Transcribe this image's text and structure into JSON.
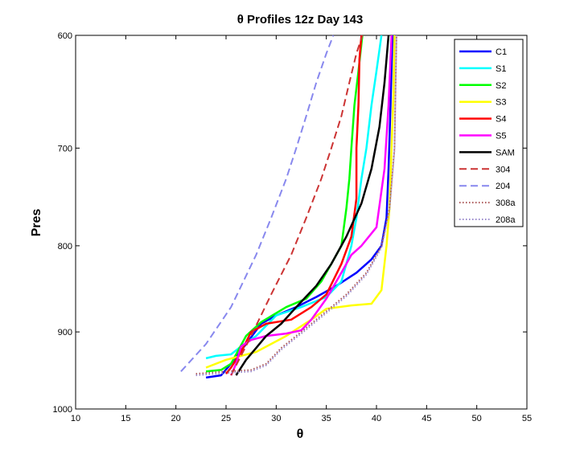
{
  "chart_data": {
    "type": "line",
    "title": "θ Profiles 12z Day 143",
    "xlabel": "θ",
    "ylabel": "Pres",
    "xlim": [
      10,
      55
    ],
    "ylim": [
      1000,
      600
    ],
    "y_scale": "log",
    "y_reversed": true,
    "grid": false,
    "legend_position": "top-right",
    "x_ticks": [
      "10",
      "15",
      "20",
      "25",
      "30",
      "35",
      "40",
      "45",
      "50",
      "55"
    ],
    "y_ticks": [
      "600",
      "700",
      "800",
      "900",
      "1000"
    ],
    "series": [
      {
        "name": "C1",
        "color": "#0000ff",
        "dash": "solid",
        "x": [
          23.0,
          24.5,
          25.5,
          27.0,
          28.5,
          30.0,
          32.0,
          34.0,
          36.0,
          38.0,
          39.5,
          40.5,
          41.0,
          41.2,
          41.4,
          41.6
        ],
        "y": [
          958,
          955,
          940,
          915,
          890,
          880,
          870,
          858,
          845,
          830,
          815,
          800,
          770,
          720,
          660,
          600
        ]
      },
      {
        "name": "S1",
        "color": "#00ffff",
        "dash": "solid",
        "x": [
          23.0,
          24.0,
          25.5,
          26.5,
          28.0,
          30.0,
          32.5,
          35.0,
          36.5,
          37.5,
          38.0,
          38.5,
          39.0,
          39.5,
          40.0,
          40.5
        ],
        "y": [
          933,
          930,
          928,
          918,
          905,
          880,
          870,
          858,
          840,
          800,
          770,
          730,
          700,
          660,
          630,
          600
        ]
      },
      {
        "name": "S2",
        "color": "#00ff00",
        "dash": "solid",
        "x": [
          23.0,
          24.5,
          25.5,
          27.0,
          28.5,
          31.0,
          33.0,
          34.5,
          35.5,
          36.5,
          37.0,
          37.3,
          37.5,
          37.8,
          38.2,
          38.6
        ],
        "y": [
          950,
          948,
          940,
          905,
          888,
          870,
          860,
          840,
          820,
          800,
          760,
          730,
          700,
          660,
          630,
          600
        ]
      },
      {
        "name": "S3",
        "color": "#ffff00",
        "dash": "solid",
        "x": [
          23.0,
          25.0,
          28.0,
          31.0,
          33.5,
          35.0,
          37.5,
          39.5,
          40.5,
          41.0,
          41.3,
          41.5,
          41.7,
          41.8
        ],
        "y": [
          945,
          935,
          925,
          905,
          885,
          872,
          868,
          866,
          850,
          800,
          760,
          700,
          650,
          600
        ]
      },
      {
        "name": "S4",
        "color": "#ff0000",
        "dash": "solid",
        "x": [
          25.0,
          25.5,
          26.5,
          27.5,
          29.0,
          31.5,
          33.5,
          35.0,
          36.5,
          37.5,
          38.0,
          38.0,
          38.2,
          38.3,
          38.5
        ],
        "y": [
          953,
          945,
          925,
          900,
          890,
          885,
          870,
          855,
          820,
          790,
          750,
          700,
          660,
          620,
          600
        ]
      },
      {
        "name": "S5",
        "color": "#ff00ff",
        "dash": "solid",
        "x": [
          25.5,
          26.0,
          26.5,
          27.5,
          29.0,
          31.0,
          32.5,
          33.5,
          35.0,
          36.5,
          37.5,
          38.5,
          40.0,
          40.8,
          41.2,
          41.5
        ],
        "y": [
          955,
          940,
          918,
          910,
          905,
          902,
          898,
          885,
          860,
          830,
          810,
          800,
          780,
          720,
          660,
          600
        ]
      },
      {
        "name": "SAM",
        "color": "#000000",
        "dash": "solid",
        "x": [
          26.0,
          27.0,
          28.0,
          29.0,
          30.5,
          32.0,
          34.0,
          35.5,
          37.0,
          38.5,
          39.5,
          40.3,
          40.8,
          41.2
        ],
        "y": [
          955,
          935,
          920,
          905,
          890,
          870,
          845,
          820,
          790,
          755,
          720,
          680,
          640,
          600
        ]
      },
      {
        "name": "304",
        "color": "#cc3333",
        "dash": "dashed",
        "x": [
          25.5,
          27.5,
          29.5,
          31.5,
          33.0,
          34.5,
          35.5,
          36.5,
          37.3,
          38.0,
          38.6
        ],
        "y": [
          955,
          905,
          855,
          810,
          770,
          730,
          700,
          670,
          640,
          615,
          600
        ]
      },
      {
        "name": "204",
        "color": "#8888ee",
        "dash": "dashed",
        "x": [
          20.5,
          23.0,
          25.5,
          28.0,
          29.5,
          31.0,
          32.0,
          33.0,
          34.0,
          35.0,
          35.7
        ],
        "y": [
          950,
          915,
          870,
          810,
          770,
          730,
          700,
          670,
          640,
          615,
          600
        ]
      },
      {
        "name": "308a",
        "color": "#aa5555",
        "dash": "dotted",
        "x": [
          22.0,
          25.0,
          27.5,
          29.0,
          30.5,
          33.0,
          35.0,
          37.0,
          39.0,
          40.5,
          41.3,
          41.8,
          42.0
        ],
        "y": [
          953,
          950,
          948,
          940,
          920,
          895,
          875,
          855,
          830,
          800,
          760,
          700,
          600
        ]
      },
      {
        "name": "208a",
        "color": "#9988cc",
        "dash": "dotted",
        "x": [
          22.0,
          25.0,
          27.5,
          29.0,
          30.5,
          33.0,
          35.0,
          37.0,
          39.0,
          40.5,
          41.3,
          41.8,
          42.0
        ],
        "y": [
          955,
          952,
          950,
          942,
          922,
          897,
          877,
          857,
          832,
          802,
          762,
          702,
          600
        ]
      }
    ]
  }
}
